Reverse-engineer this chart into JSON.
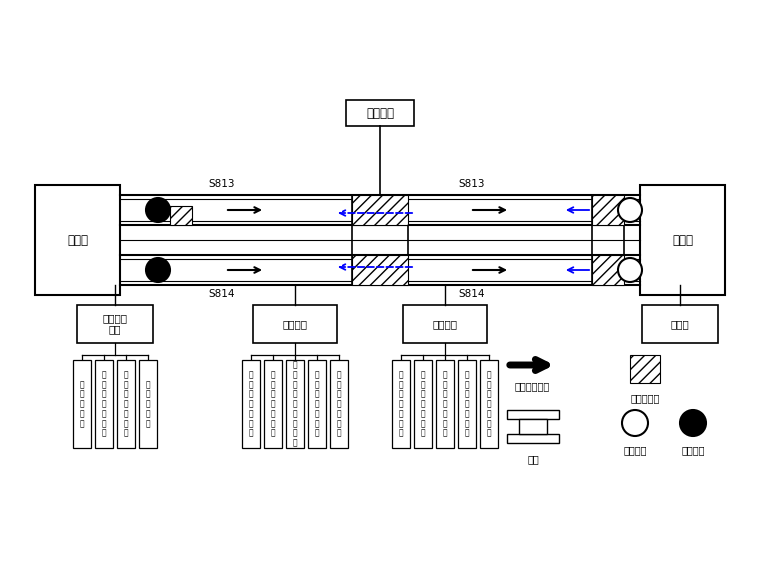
{
  "bg_color": "#ffffff",
  "sjj_label": "施工竖井",
  "zhenlong_label": "镇龙站",
  "zhongxin_label": "中新站",
  "mingwa_label": "明挖车站\n工区",
  "dungou_label": "盾构工区",
  "kuashan_label": "矿山工区",
  "s813": "S813",
  "s814": "S814",
  "legend_arrow": "盾构掘进方向",
  "legend_hatch": "矿山法隧道",
  "legend_station": "车站",
  "legend_receive": "盾构接收",
  "legend_start": "盾构始发",
  "mingwa_children": [
    "土\n方\n作\n业\n队",
    "围\n护\n结\n构\n作\n业\n队",
    "防\n水\n施\n工\n作\n业\n队",
    "结\n构\n作\n业\n队"
  ],
  "dungou_children": [
    "盾\n构\n施\n工\n作\n业\n队",
    "盾\n构\n配\n合\n作\n业\n队",
    "中\n间\n竖\n井\n施\n工\n作\n业\n队",
    "盾\n构\n施\n工\n作\n业\n队",
    "盾\n构\n配\n合\n作\n业\n队"
  ],
  "kuashan_children": [
    "矿\n山\n施\n工\n作\n业\n队",
    "矿\n山\n配\n合\n作\n业\n队",
    "施\n工\n竖\n井\n作\n业\n队",
    "矿\n山\n施\n工\n作\n业\n队",
    "矿\n山\n配\n合\n作\n业\n队"
  ]
}
